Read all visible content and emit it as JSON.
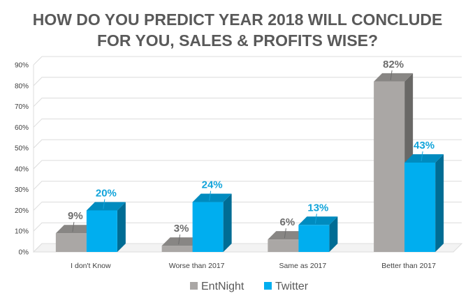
{
  "chart_data": {
    "type": "bar",
    "title_lines": [
      "HOW DO YOU PREDICT YEAR 2018 WILL CONCLUDE",
      "FOR YOU, SALES & PROFITS WISE?"
    ],
    "categories": [
      "I don't Know",
      "Worse than 2017",
      "Same as 2017",
      "Better than 2017"
    ],
    "series": [
      {
        "name": "EntNight",
        "values": [
          9,
          3,
          6,
          82
        ],
        "labels": [
          "9%",
          "3%",
          "6%",
          "82%"
        ],
        "color": "#aaa7a5",
        "label_color": "#6d6d6d"
      },
      {
        "name": "Twitter",
        "values": [
          20,
          24,
          13,
          43
        ],
        "labels": [
          "20%",
          "24%",
          "13%",
          "43%"
        ],
        "color": "#00aeef",
        "label_color": "#12a4da"
      }
    ],
    "y_ticks": [
      "0%",
      "10%",
      "20%",
      "30%",
      "40%",
      "50%",
      "60%",
      "70%",
      "80%",
      "90%"
    ],
    "ylim": [
      0,
      90
    ],
    "grid": true,
    "legend_position": "bottom-center"
  }
}
